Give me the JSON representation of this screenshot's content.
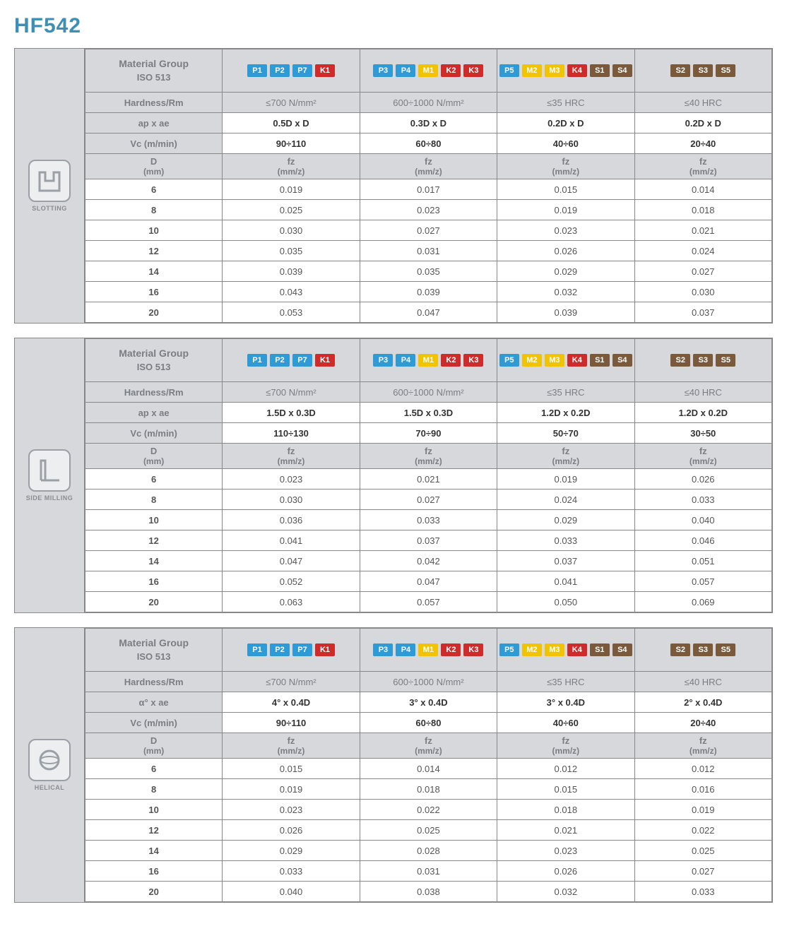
{
  "title": "HF542",
  "badgeColors": {
    "P": "#2e9ad6",
    "M": "#f2c300",
    "K": "#cf2b2b",
    "S": "#7a5a3a"
  },
  "groups": [
    {
      "labels": [
        "P1",
        "P2",
        "P7",
        "K1"
      ]
    },
    {
      "labels": [
        "P3",
        "P4",
        "M1",
        "K2",
        "K3"
      ]
    },
    {
      "labels": [
        "P5",
        "M2",
        "M3",
        "K4",
        "S1",
        "S4"
      ]
    },
    {
      "labels": [
        "S2",
        "S3",
        "S5"
      ]
    }
  ],
  "rowLabels": {
    "material": "Material Group",
    "iso": "ISO 513",
    "hardness": "Hardness/Rm",
    "apae": "ap x ae",
    "alpha_ae": "α° x ae",
    "vc": "Vc (m/min)",
    "d": "D",
    "d_unit": "(mm)",
    "fz": "fz",
    "fz_unit": "(mm/z)"
  },
  "sections": [
    {
      "label": "SLOTTING",
      "icon": "slotting",
      "param_row_label": "ap x ae",
      "hardness": [
        "≤700 N/mm²",
        "600÷1000 N/mm²",
        "≤35 HRC",
        "≤40 HRC"
      ],
      "apae": [
        "0.5D x D",
        "0.3D x D",
        "0.2D x D",
        "0.2D x D"
      ],
      "vc": [
        "90÷110",
        "60÷80",
        "40÷60",
        "20÷40"
      ],
      "data": {
        "6": [
          "0.019",
          "0.017",
          "0.015",
          "0.014"
        ],
        "8": [
          "0.025",
          "0.023",
          "0.019",
          "0.018"
        ],
        "10": [
          "0.030",
          "0.027",
          "0.023",
          "0.021"
        ],
        "12": [
          "0.035",
          "0.031",
          "0.026",
          "0.024"
        ],
        "14": [
          "0.039",
          "0.035",
          "0.029",
          "0.027"
        ],
        "16": [
          "0.043",
          "0.039",
          "0.032",
          "0.030"
        ],
        "20": [
          "0.053",
          "0.047",
          "0.039",
          "0.037"
        ]
      }
    },
    {
      "label": "SIDE MILLING",
      "icon": "side",
      "param_row_label": "ap x ae",
      "hardness": [
        "≤700 N/mm²",
        "600÷1000 N/mm²",
        "≤35 HRC",
        "≤40 HRC"
      ],
      "apae": [
        "1.5D x 0.3D",
        "1.5D x 0.3D",
        "1.2D x 0.2D",
        "1.2D x 0.2D"
      ],
      "vc": [
        "110÷130",
        "70÷90",
        "50÷70",
        "30÷50"
      ],
      "data": {
        "6": [
          "0.023",
          "0.021",
          "0.019",
          "0.026"
        ],
        "8": [
          "0.030",
          "0.027",
          "0.024",
          "0.033"
        ],
        "10": [
          "0.036",
          "0.033",
          "0.029",
          "0.040"
        ],
        "12": [
          "0.041",
          "0.037",
          "0.033",
          "0.046"
        ],
        "14": [
          "0.047",
          "0.042",
          "0.037",
          "0.051"
        ],
        "16": [
          "0.052",
          "0.047",
          "0.041",
          "0.057"
        ],
        "20": [
          "0.063",
          "0.057",
          "0.050",
          "0.069"
        ]
      }
    },
    {
      "label": "HELICAL",
      "icon": "helical",
      "param_row_label": "α° x ae",
      "hardness": [
        "≤700 N/mm²",
        "600÷1000 N/mm²",
        "≤35 HRC",
        "≤40 HRC"
      ],
      "apae": [
        "4° x 0.4D",
        "3° x 0.4D",
        "3° x 0.4D",
        "2° x 0.4D"
      ],
      "vc": [
        "90÷110",
        "60÷80",
        "40÷60",
        "20÷40"
      ],
      "data": {
        "6": [
          "0.015",
          "0.014",
          "0.012",
          "0.012"
        ],
        "8": [
          "0.019",
          "0.018",
          "0.015",
          "0.016"
        ],
        "10": [
          "0.023",
          "0.022",
          "0.018",
          "0.019"
        ],
        "12": [
          "0.026",
          "0.025",
          "0.021",
          "0.022"
        ],
        "14": [
          "0.029",
          "0.028",
          "0.023",
          "0.025"
        ],
        "16": [
          "0.033",
          "0.031",
          "0.026",
          "0.027"
        ],
        "20": [
          "0.040",
          "0.038",
          "0.032",
          "0.033"
        ]
      }
    }
  ]
}
